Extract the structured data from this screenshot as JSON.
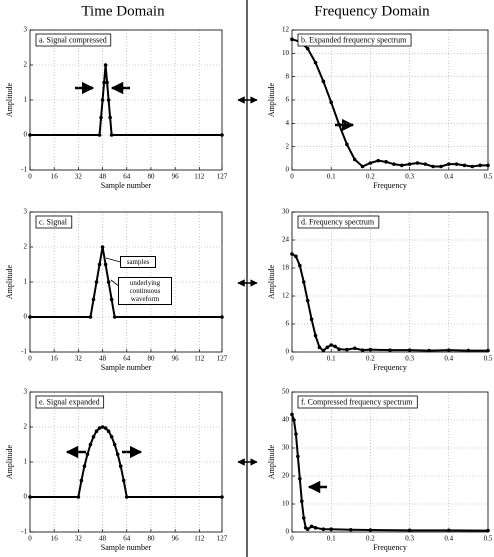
{
  "headers": {
    "left": "Time Domain",
    "right": "Frequency Domain"
  },
  "chart_data": [
    {
      "type": "line",
      "title": "a. Signal compressed",
      "x_label": "Sample number",
      "y_label": "Amplitude",
      "x": [
        0,
        46,
        47,
        48,
        49,
        50,
        51,
        52,
        53,
        54,
        127
      ],
      "values": [
        0,
        0,
        0.5,
        1,
        1.5,
        2,
        1.5,
        1,
        0.5,
        0,
        0
      ],
      "color": "#000000",
      "xlim": [
        0,
        127
      ],
      "xticks": [
        0,
        16,
        32,
        48,
        64,
        80,
        96,
        112,
        127
      ],
      "ylim": [
        -1,
        3
      ],
      "yticks": [
        -1,
        0,
        1,
        2,
        3
      ],
      "grid": true
    },
    {
      "type": "line",
      "title": "b. Expanded frequency spectrum",
      "x_label": "Frequency",
      "y_label": "Amplitude",
      "x": [
        0,
        0.02,
        0.04,
        0.06,
        0.08,
        0.1,
        0.12,
        0.14,
        0.16,
        0.18,
        0.2,
        0.22,
        0.24,
        0.26,
        0.28,
        0.3,
        0.32,
        0.34,
        0.36,
        0.38,
        0.4,
        0.42,
        0.44,
        0.46,
        0.48,
        0.5
      ],
      "values": [
        11.2,
        11,
        10.4,
        9.2,
        7.6,
        5.8,
        3.9,
        2.2,
        0.9,
        0.3,
        0.6,
        0.8,
        0.7,
        0.5,
        0.4,
        0.5,
        0.6,
        0.5,
        0.3,
        0.3,
        0.5,
        0.5,
        0.4,
        0.3,
        0.4,
        0.4
      ],
      "color": "#000000",
      "xlim": [
        0,
        0.5
      ],
      "xticks": [
        0,
        0.1,
        0.2,
        0.3,
        0.4,
        0.5
      ],
      "ylim": [
        0,
        12
      ],
      "yticks": [
        0,
        2,
        4,
        6,
        8,
        10,
        12
      ],
      "grid": true
    },
    {
      "type": "line",
      "title": "c. Signal",
      "x_label": "Sample number",
      "y_label": "Amplitude",
      "annotations": [
        "samples",
        "underlying continuous waveform"
      ],
      "x": [
        0,
        40,
        42,
        44,
        46,
        48,
        50,
        52,
        54,
        56,
        127
      ],
      "values": [
        0,
        0,
        0.5,
        1,
        1.5,
        2,
        1.5,
        1,
        0.5,
        0,
        0
      ],
      "color": "#000000",
      "xlim": [
        0,
        127
      ],
      "xticks": [
        0,
        16,
        32,
        48,
        64,
        80,
        96,
        112,
        127
      ],
      "ylim": [
        -1,
        3
      ],
      "yticks": [
        -1,
        0,
        1,
        2,
        3
      ],
      "grid": true
    },
    {
      "type": "line",
      "title": "d. Frequency spectrum",
      "x_label": "Frequency",
      "y_label": "Amplitude",
      "x": [
        0,
        0.01,
        0.02,
        0.03,
        0.04,
        0.05,
        0.06,
        0.07,
        0.08,
        0.09,
        0.1,
        0.11,
        0.12,
        0.14,
        0.16,
        0.18,
        0.2,
        0.25,
        0.3,
        0.35,
        0.4,
        0.45,
        0.5
      ],
      "values": [
        21,
        20.5,
        18.5,
        15,
        11,
        7,
        3.5,
        1,
        0.3,
        1,
        1.5,
        1.2,
        0.6,
        0.5,
        0.8,
        0.4,
        0.5,
        0.4,
        0.4,
        0.3,
        0.4,
        0.3,
        0.3
      ],
      "color": "#000000",
      "xlim": [
        0,
        0.5
      ],
      "xticks": [
        0,
        0.1,
        0.2,
        0.3,
        0.4,
        0.5
      ],
      "ylim": [
        0,
        30
      ],
      "yticks": [
        0,
        6,
        12,
        18,
        24,
        30
      ],
      "grid": true
    },
    {
      "type": "line",
      "title": "e. Signal expanded",
      "x_label": "Sample number",
      "y_label": "Amplitude",
      "x": [
        0,
        32,
        34,
        36,
        38,
        40,
        42,
        44,
        46,
        48,
        50,
        52,
        54,
        56,
        58,
        60,
        62,
        64,
        127
      ],
      "values": [
        0,
        0,
        0.47,
        0.88,
        1.22,
        1.5,
        1.72,
        1.88,
        1.97,
        2,
        1.97,
        1.88,
        1.72,
        1.5,
        1.22,
        0.88,
        0.47,
        0,
        0
      ],
      "color": "#000000",
      "xlim": [
        0,
        127
      ],
      "xticks": [
        0,
        16,
        32,
        48,
        64,
        80,
        96,
        112,
        127
      ],
      "ylim": [
        -1,
        3
      ],
      "yticks": [
        -1,
        0,
        1,
        2,
        3
      ],
      "grid": true
    },
    {
      "type": "line",
      "title": "f. Compressed frequency spectrum",
      "x_label": "Frequency",
      "y_label": "Amplitude",
      "x": [
        0,
        0.005,
        0.01,
        0.015,
        0.02,
        0.025,
        0.03,
        0.035,
        0.04,
        0.05,
        0.06,
        0.08,
        0.1,
        0.15,
        0.2,
        0.3,
        0.4,
        0.5
      ],
      "values": [
        42,
        40,
        35,
        27,
        19,
        11,
        5,
        1.5,
        1,
        2,
        1.5,
        1,
        1,
        0.8,
        0.7,
        0.6,
        0.6,
        0.5
      ],
      "color": "#000000",
      "xlim": [
        0,
        0.5
      ],
      "xticks": [
        0,
        0.1,
        0.2,
        0.3,
        0.4,
        0.5
      ],
      "ylim": [
        0,
        50
      ],
      "yticks": [
        0,
        10,
        20,
        30,
        40,
        50
      ],
      "grid": true
    }
  ]
}
